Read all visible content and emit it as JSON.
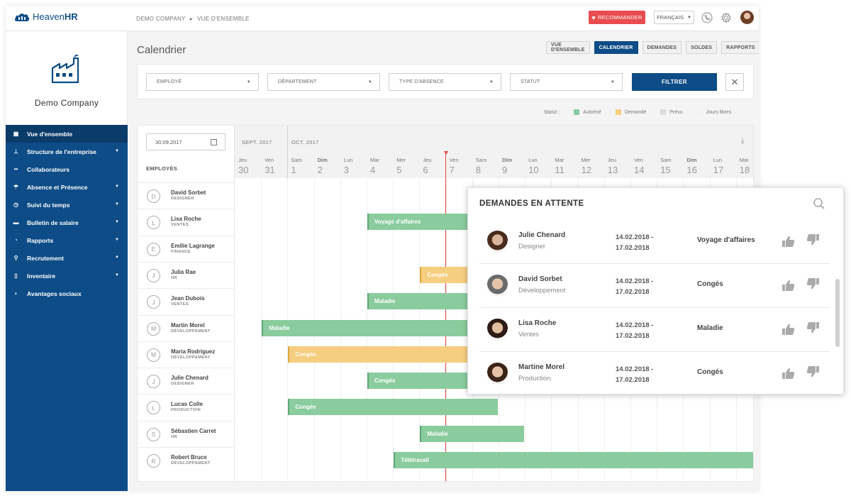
{
  "app": {
    "logo_text_bold": "Heaven",
    "logo_text_light": "HR",
    "breadcrumb": [
      "DEMO COMPANY",
      "▸",
      "VUE D'ENSEMBLE"
    ],
    "recommend_label": "RECOMMANDER",
    "language": "FRANÇAIS"
  },
  "company": {
    "name": "Demo Company"
  },
  "sidebar": {
    "items": [
      {
        "label": "Vue d'ensemble",
        "icon": "grid-icon",
        "caret": false,
        "active": true
      },
      {
        "label": "Structure de l'entreprise",
        "icon": "org-chart-icon",
        "caret": true
      },
      {
        "label": "Collaborateurs",
        "icon": "people-icon",
        "caret": false
      },
      {
        "label": "Absence et Présence",
        "icon": "beach-umbrella-icon",
        "caret": true
      },
      {
        "label": "Suivi du temps",
        "icon": "stopwatch-icon",
        "caret": true
      },
      {
        "label": "Bulletin de salaire",
        "icon": "wallet-icon",
        "caret": true
      },
      {
        "label": "Rapports",
        "icon": "chart-icon",
        "caret": true
      },
      {
        "label": "Recrutement",
        "icon": "magnifier-people-icon",
        "caret": true
      },
      {
        "label": "Inventaire",
        "icon": "phone-icon",
        "caret": true
      },
      {
        "label": "Avantages sociaux",
        "icon": "shield-icon",
        "caret": false
      }
    ]
  },
  "page": {
    "title": "Calendrier",
    "tabs": [
      "VUE D'ENSEMBLE",
      "CALENDRIER",
      "DEMANDES",
      "SOLDES",
      "RAPPORTS"
    ],
    "active_tab": 1
  },
  "filters": {
    "selects": [
      "EMPLOYÉ",
      "DÉPARTEMENT",
      "TYPE D'ABSENCE",
      "STATUT"
    ],
    "filter_button": "FILTRER"
  },
  "legend": {
    "label": "Statut :",
    "items": [
      {
        "label": "Autorisé",
        "color": "#8acc9d"
      },
      {
        "label": "Demandé",
        "color": "#f6ce7f"
      },
      {
        "label": "Prévu",
        "color": "#dcdcdc"
      },
      {
        "label": "Jours libres",
        "color": "#f2f2f2"
      }
    ]
  },
  "calendar": {
    "date_value": "30.09.2017",
    "employees_header": "EMPLOYÉS",
    "months": [
      {
        "label": "SEPT. 2017"
      },
      {
        "label": "OCT. 2017"
      }
    ],
    "days": [
      {
        "name": "Jeu",
        "num": "30",
        "we": false
      },
      {
        "name": "Ven",
        "num": "31",
        "we": false
      },
      {
        "name": "Sam",
        "num": "1",
        "we": false
      },
      {
        "name": "Dim",
        "num": "2",
        "we": true
      },
      {
        "name": "Lun",
        "num": "3",
        "we": false
      },
      {
        "name": "Mar",
        "num": "4",
        "we": false
      },
      {
        "name": "Mer",
        "num": "5",
        "we": false
      },
      {
        "name": "Jeu",
        "num": "6",
        "we": false
      },
      {
        "name": "Ven",
        "num": "7",
        "we": false
      },
      {
        "name": "Sam",
        "num": "8",
        "we": false
      },
      {
        "name": "Dim",
        "num": "9",
        "we": true
      },
      {
        "name": "Lun",
        "num": "10",
        "we": false
      },
      {
        "name": "Mar",
        "num": "11",
        "we": false
      },
      {
        "name": "Mer",
        "num": "12",
        "we": false
      },
      {
        "name": "Jeu",
        "num": "13",
        "we": false
      },
      {
        "name": "Ven",
        "num": "14",
        "we": false
      },
      {
        "name": "Sam",
        "num": "15",
        "we": false
      },
      {
        "name": "Dim",
        "num": "16",
        "we": true
      },
      {
        "name": "Lun",
        "num": "17",
        "we": false
      },
      {
        "name": "Mar",
        "num": "18",
        "we": false
      }
    ],
    "employees": [
      {
        "initial": "D",
        "name": "David Sorbet",
        "role": "DESIGNER"
      },
      {
        "initial": "L",
        "name": "Lisa Roche",
        "role": "VENTES"
      },
      {
        "initial": "E",
        "name": "Emilie Lagrange",
        "role": "FINANCE"
      },
      {
        "initial": "J",
        "name": "Julia Rae",
        "role": "HR"
      },
      {
        "initial": "J",
        "name": "Jean Dubois",
        "role": "VENTES"
      },
      {
        "initial": "M",
        "name": "Martin Morel",
        "role": "DÉVELOPPEMENT"
      },
      {
        "initial": "M",
        "name": "Maria Rodriguez",
        "role": "DÉVELOPPEMENT"
      },
      {
        "initial": "J",
        "name": "Julie Chenard",
        "role": "DESIGNER"
      },
      {
        "initial": "L",
        "name": "Lucas Colle",
        "role": "PRODUCTION"
      },
      {
        "initial": "S",
        "name": "Sébastien Carret",
        "role": "HR"
      },
      {
        "initial": "R",
        "name": "Robert Bruce",
        "role": "DÉVELOPPEMENT"
      }
    ],
    "absences": [
      {
        "row": 1,
        "start_day": "4",
        "end_day": "8",
        "label": "Voyage d'affaires",
        "status": "approved"
      },
      {
        "row": 3,
        "start_day": "6",
        "end_day": "8",
        "label": "Congés",
        "status": "requested"
      },
      {
        "row": 4,
        "start_day": "4",
        "end_day": "8",
        "label": "Maladie",
        "status": "approved"
      },
      {
        "row": 5,
        "start_day": "31",
        "end_day": "8",
        "label": "Maladie",
        "status": "approved"
      },
      {
        "row": 6,
        "start_day": "1",
        "end_day": "8",
        "label": "Congés",
        "status": "requested"
      },
      {
        "row": 7,
        "start_day": "4",
        "end_day": "8",
        "label": "Congés",
        "status": "approved"
      },
      {
        "row": 8,
        "start_day": "1",
        "end_day": "8",
        "label": "Congés",
        "status": "approved"
      },
      {
        "row": 9,
        "start_day": "6",
        "end_day": "9",
        "label": "Maladie",
        "status": "approved"
      },
      {
        "row": 10,
        "start_day": "5",
        "end_day": "18",
        "label": "Télétravail",
        "status": "approved"
      }
    ]
  },
  "pending": {
    "title": "DEMANDES EN ATTENTE",
    "requests": [
      {
        "name": "Julie Chenard",
        "dept": "Designer",
        "date_from": "14.02.2018 -",
        "date_to": "17.02.2018",
        "type": "Voyage d'affaires"
      },
      {
        "name": "David Sorbet",
        "dept": "Développement",
        "date_from": "14.02.2018 -",
        "date_to": "17.02.2018",
        "type": "Congés"
      },
      {
        "name": "Lisa Roche",
        "dept": "Ventes",
        "date_from": "14.02.2018 -",
        "date_to": "17.02.2018",
        "type": "Maladie"
      },
      {
        "name": "Martine Morel",
        "dept": "Production",
        "date_from": "14.02.2018 -",
        "date_to": "17.02.2018",
        "type": "Congés"
      }
    ]
  }
}
